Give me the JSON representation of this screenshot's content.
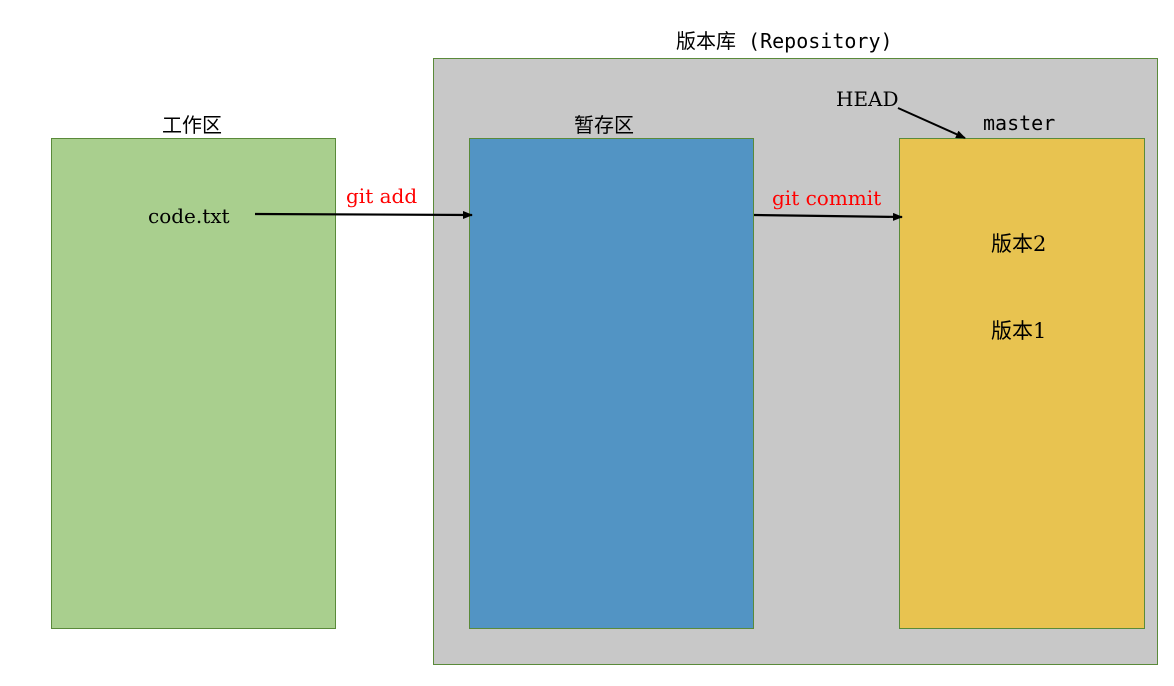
{
  "repository": {
    "title": "版本库 (Repository)"
  },
  "workspace": {
    "title": "工作区",
    "file": "code.txt"
  },
  "stage": {
    "title": "暂存区"
  },
  "branch": {
    "head_label": "HEAD",
    "name": "master",
    "versions": [
      "版本2",
      "版本1"
    ]
  },
  "actions": {
    "add": "git add",
    "commit": "git commit"
  },
  "colors": {
    "workspace_fill": "#a9cf8e",
    "stage_fill": "#5294c4",
    "master_fill": "#e8c350",
    "repository_fill": "#c8c8c8",
    "action_text": "#ff0000"
  }
}
